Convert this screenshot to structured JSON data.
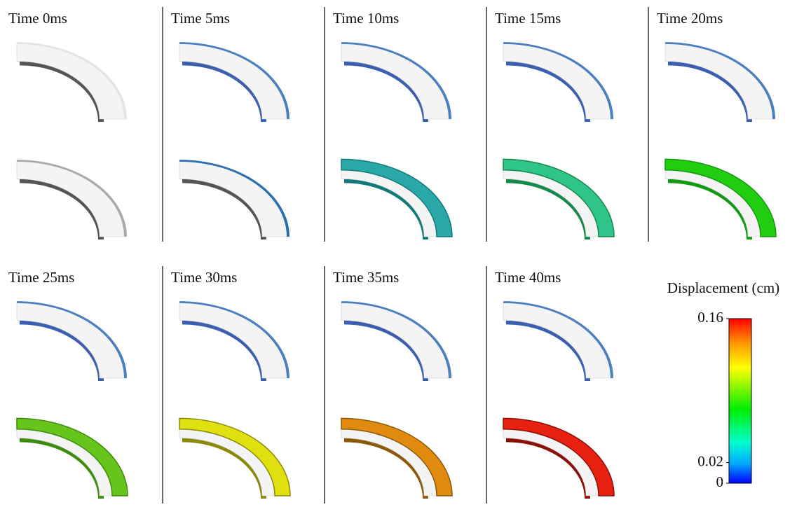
{
  "panels": [
    {
      "title": "Time 0ms"
    },
    {
      "title": "Time 5ms"
    },
    {
      "title": "Time 10ms"
    },
    {
      "title": "Time 15ms"
    },
    {
      "title": "Time 20ms"
    },
    {
      "title": "Time 25ms"
    },
    {
      "title": "Time 30ms"
    },
    {
      "title": "Time 35ms"
    },
    {
      "title": "Time 40ms"
    }
  ],
  "colorbar": {
    "title": "Displacement (cm)",
    "lim": [
      0,
      0.16
    ],
    "ticks": [
      0.16,
      0.02,
      0
    ]
  }
}
